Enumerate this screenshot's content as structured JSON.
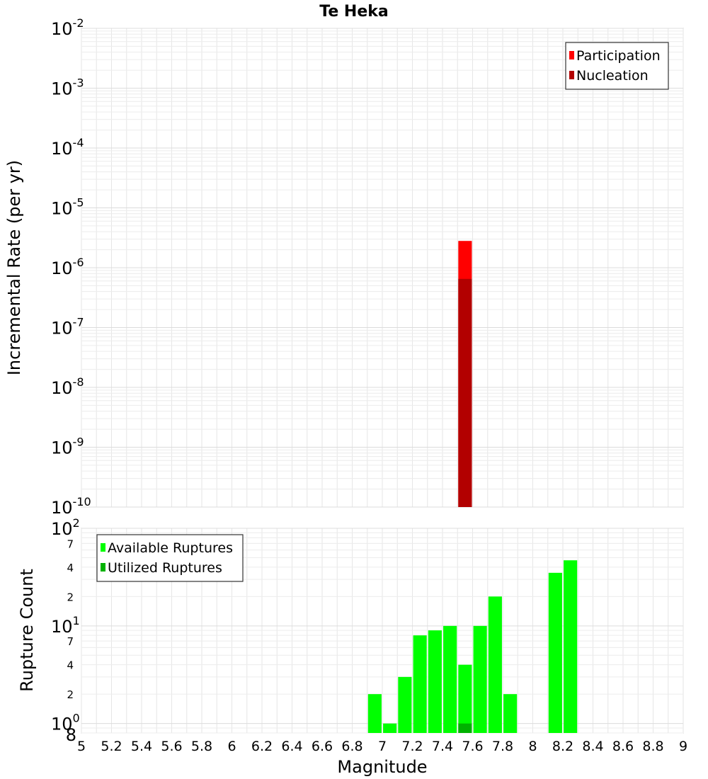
{
  "chart_data": [
    {
      "type": "bar",
      "title": "Te Heka",
      "xlabel": "",
      "ylabel": "Incremental Rate (per yr)",
      "yscale": "log",
      "xlim": [
        5,
        9
      ],
      "ylim": [
        1e-10,
        0.01
      ],
      "grid": true,
      "legend_position": "top-right",
      "y_ticks": [
        {
          "base": "10",
          "exp": "-10"
        },
        {
          "base": "10",
          "exp": "-9"
        },
        {
          "base": "10",
          "exp": "-8"
        },
        {
          "base": "10",
          "exp": "-7"
        },
        {
          "base": "10",
          "exp": "-6"
        },
        {
          "base": "10",
          "exp": "-5"
        },
        {
          "base": "10",
          "exp": "-4"
        },
        {
          "base": "10",
          "exp": "-3"
        },
        {
          "base": "10",
          "exp": "-2"
        }
      ],
      "series": [
        {
          "name": "Participation",
          "color": "#ff0000",
          "x": [
            7.55
          ],
          "values": [
            2.8e-06
          ]
        },
        {
          "name": "Nucleation",
          "color": "#b20000",
          "x": [
            7.55
          ],
          "values": [
            6.5e-07
          ]
        }
      ]
    },
    {
      "type": "bar",
      "title": "",
      "xlabel": "Magnitude",
      "ylabel": "Rupture Count",
      "yscale": "log",
      "xlim": [
        5,
        9
      ],
      "ylim": [
        0.8,
        100
      ],
      "grid": true,
      "legend_position": "top-left",
      "x_ticks": [
        "5",
        "5.2",
        "5.4",
        "5.6",
        "5.8",
        "6",
        "6.2",
        "6.4",
        "6.6",
        "6.8",
        "7",
        "7.2",
        "7.4",
        "7.6",
        "7.8",
        "8",
        "8.2",
        "8.4",
        "8.6",
        "8.8",
        "9"
      ],
      "y_major_ticks": [
        {
          "base": "10",
          "exp": "0"
        },
        {
          "base": "10",
          "exp": "1"
        },
        {
          "base": "10",
          "exp": "2"
        }
      ],
      "y_minor_ticks": [
        "8",
        "2",
        "4",
        "7",
        "2",
        "4",
        "7"
      ],
      "series": [
        {
          "name": "Available Ruptures",
          "color": "#00ff00",
          "x": [
            6.95,
            7.05,
            7.15,
            7.25,
            7.35,
            7.45,
            7.55,
            7.65,
            7.75,
            7.85,
            8.15,
            8.25
          ],
          "values": [
            2,
            1,
            3,
            8,
            9,
            10,
            4,
            10,
            20,
            2,
            35,
            47
          ]
        },
        {
          "name": "Utilized Ruptures",
          "color": "#00b200",
          "x": [
            7.55
          ],
          "values": [
            1
          ]
        }
      ]
    }
  ]
}
